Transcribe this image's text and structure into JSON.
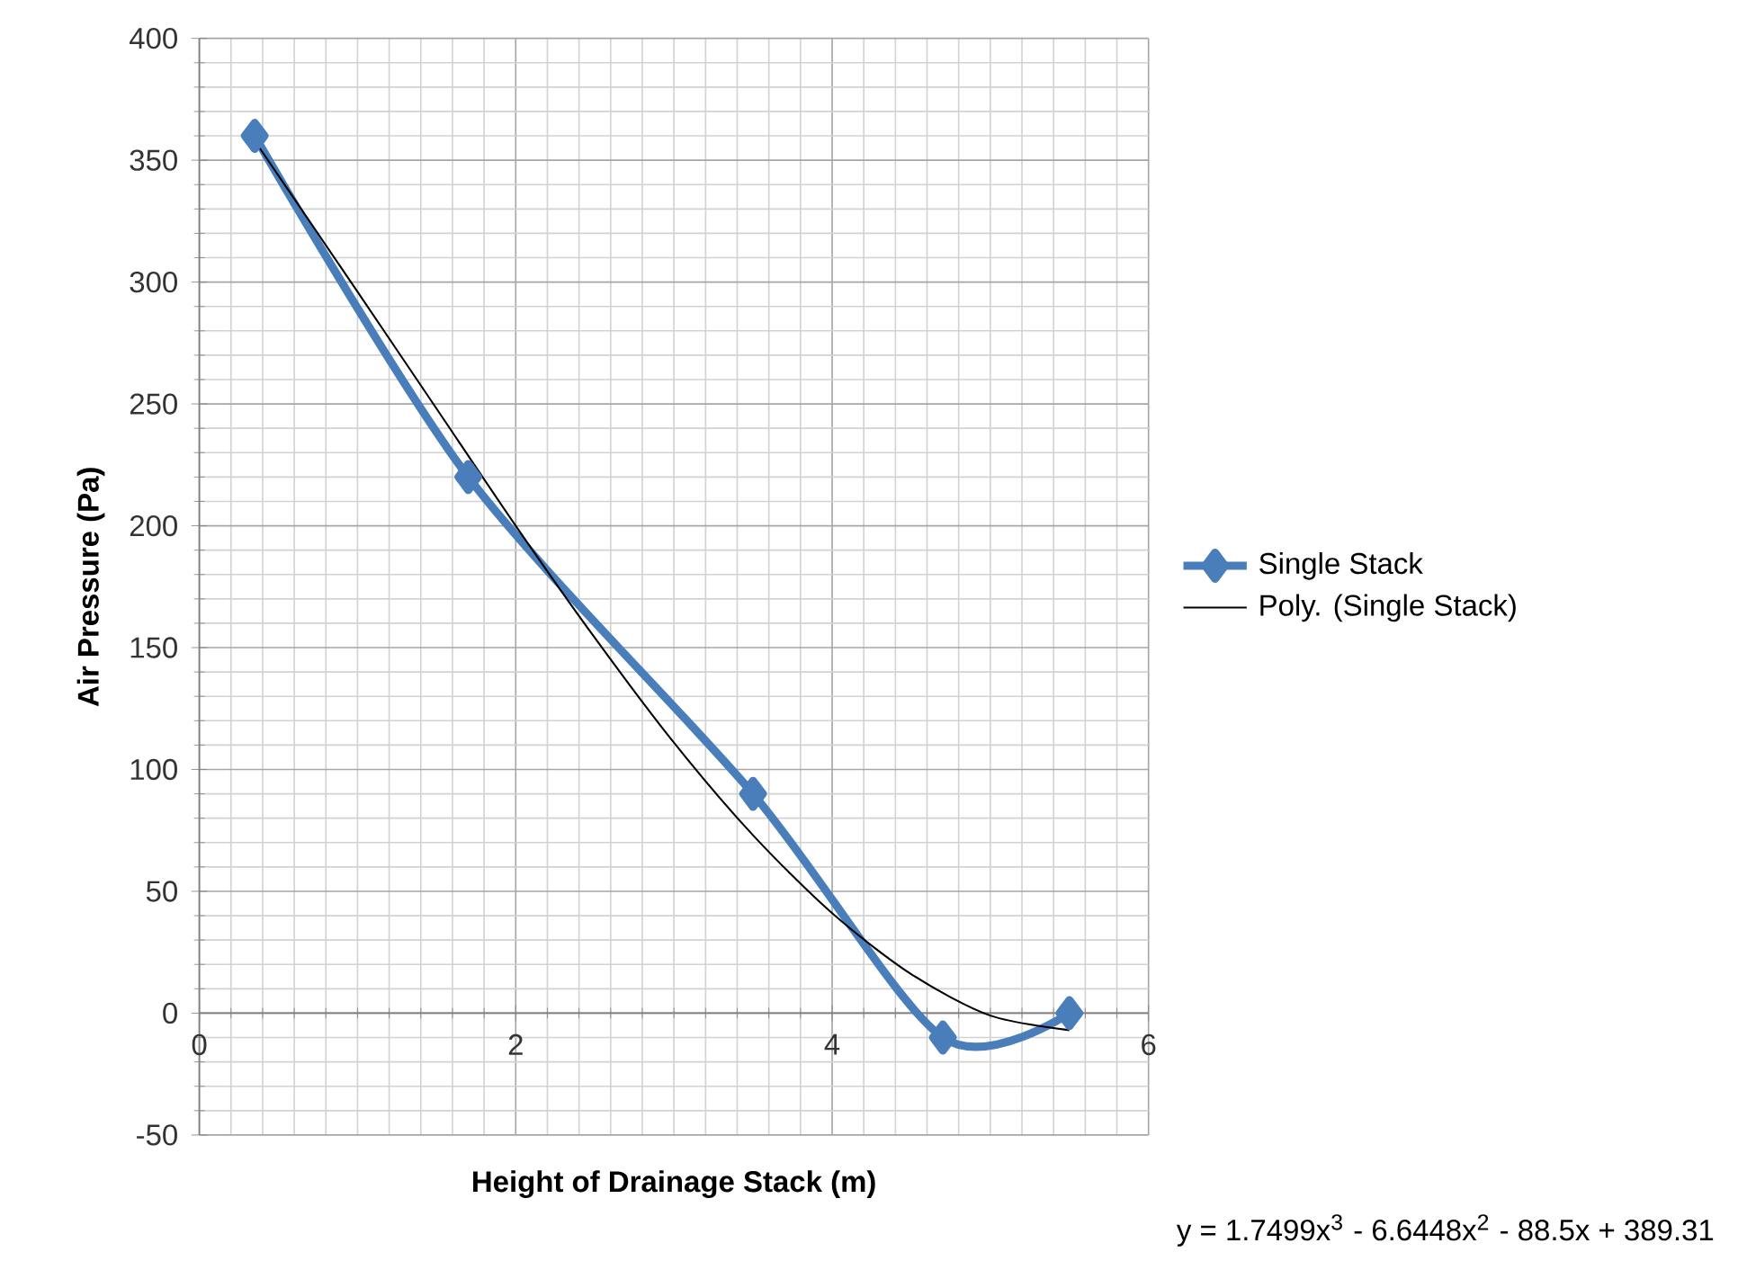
{
  "chart_data": {
    "type": "line",
    "xlabel": "Height of Drainage Stack (m)",
    "ylabel": "Air Pressure (Pa)",
    "xlim": [
      0,
      6
    ],
    "xticks": [
      0,
      2,
      4,
      6
    ],
    "ylim": [
      -50,
      400
    ],
    "yticks": [
      -50,
      0,
      50,
      100,
      150,
      200,
      250,
      300,
      350,
      400
    ],
    "grid": true,
    "legend": "right",
    "series": [
      {
        "name": "Single Stack",
        "color": "#4a7ebb",
        "marker": "diamond",
        "x": [
          0.35,
          1.7,
          3.5,
          4.7,
          5.5
        ],
        "values": [
          360,
          220,
          90,
          -10,
          0
        ]
      },
      {
        "name": "Poly. (Single Stack)",
        "color": "#000000",
        "marker": "none",
        "x": [
          0.35,
          1,
          1.5,
          2,
          2.5,
          3,
          3.5,
          4,
          4.5,
          5,
          5.5
        ],
        "values": [
          358,
          296,
          248,
          200,
          154,
          111,
          73,
          41,
          16,
          -1,
          -7
        ]
      }
    ],
    "annotations": [
      "y = 1.7499x$^{3}$ - 6.6448x$^{2}$ - 88.5x + 389.31"
    ]
  }
}
